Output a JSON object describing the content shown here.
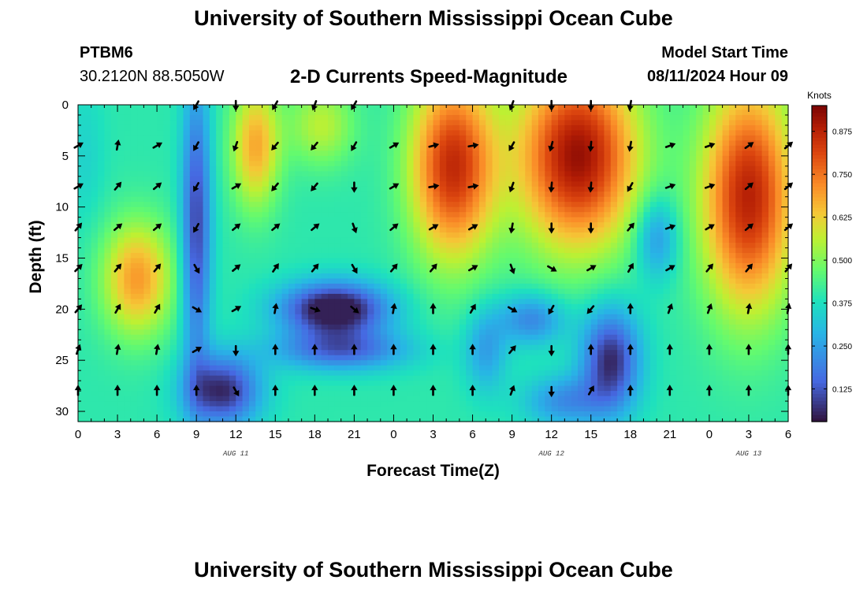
{
  "header": {
    "title": "University of Southern Mississippi Ocean Cube",
    "station_id": "PTBM6",
    "station_coords": "30.2120N  88.5050W",
    "subtitle": "2-D Currents Speed-Magnitude",
    "model_label": "Model Start Time",
    "model_time": "08/11/2024 Hour 09"
  },
  "footer": {
    "title": "University of Southern Mississippi Ocean Cube"
  },
  "chart_data": {
    "type": "heatmap",
    "title": "2-D Currents Speed-Magnitude",
    "xlabel": "Forecast Time(Z)",
    "ylabel": "Depth (ft)",
    "colorbar_label": "Knots",
    "x_range": [
      0,
      54
    ],
    "y_range": [
      0,
      31
    ],
    "y_inverted": true,
    "x_ticks": [
      0,
      3,
      6,
      9,
      12,
      15,
      18,
      21,
      24,
      27,
      30,
      33,
      36,
      39,
      42,
      45,
      48,
      51,
      54
    ],
    "x_tick_labels": [
      "0",
      "3",
      "6",
      "9",
      "12",
      "15",
      "18",
      "21",
      "0",
      "3",
      "6",
      "9",
      "12",
      "15",
      "18",
      "21",
      "0",
      "3",
      "6"
    ],
    "y_ticks": [
      0,
      5,
      10,
      15,
      20,
      25,
      30
    ],
    "y_tick_labels": [
      "0",
      "5",
      "10",
      "15",
      "20",
      "25",
      "30"
    ],
    "date_labels": [
      {
        "x": 12,
        "label": "AUG 11"
      },
      {
        "x": 36,
        "label": "AUG 12"
      },
      {
        "x": 51,
        "label": "AUG 13"
      }
    ],
    "colorbar_range": [
      0.03,
      0.95
    ],
    "colorbar_ticks": [
      0.125,
      0.25,
      0.375,
      0.5,
      0.625,
      0.75,
      0.875
    ],
    "colorbar_tick_labels": [
      "0.125",
      "0.250",
      "0.375",
      "0.500",
      "0.625",
      "0.750",
      "0.875"
    ],
    "vector_x": [
      0,
      3,
      6,
      9,
      12,
      15,
      18,
      21,
      24,
      27,
      30,
      33,
      36,
      39,
      42,
      45,
      48,
      51,
      54
    ],
    "vector_depths": [
      0,
      4,
      8,
      12,
      16,
      20,
      24,
      28
    ],
    "vector_directions_deg": [
      [
        null,
        null,
        null,
        210,
        180,
        210,
        200,
        210,
        null,
        null,
        null,
        200,
        180,
        180,
        190,
        null,
        null,
        null,
        null
      ],
      [
        60,
        10,
        60,
        210,
        200,
        220,
        220,
        210,
        60,
        75,
        80,
        210,
        195,
        185,
        190,
        70,
        70,
        55,
        50
      ],
      [
        60,
        40,
        50,
        210,
        60,
        220,
        220,
        180,
        60,
        80,
        80,
        200,
        185,
        185,
        210,
        70,
        70,
        50,
        50
      ],
      [
        40,
        50,
        50,
        210,
        50,
        50,
        50,
        160,
        50,
        60,
        60,
        190,
        180,
        180,
        40,
        70,
        60,
        50,
        50
      ],
      [
        45,
        40,
        40,
        150,
        50,
        35,
        40,
        150,
        40,
        40,
        60,
        160,
        120,
        60,
        30,
        60,
        40,
        40,
        40
      ],
      [
        40,
        30,
        30,
        120,
        60,
        10,
        110,
        130,
        10,
        0,
        30,
        120,
        210,
        220,
        0,
        20,
        20,
        10,
        10
      ],
      [
        20,
        10,
        10,
        60,
        180,
        0,
        0,
        0,
        0,
        0,
        0,
        40,
        180,
        0,
        0,
        0,
        0,
        0,
        0
      ],
      [
        0,
        0,
        0,
        0,
        150,
        0,
        0,
        0,
        0,
        0,
        0,
        20,
        180,
        30,
        0,
        0,
        0,
        0,
        0
      ]
    ]
  }
}
